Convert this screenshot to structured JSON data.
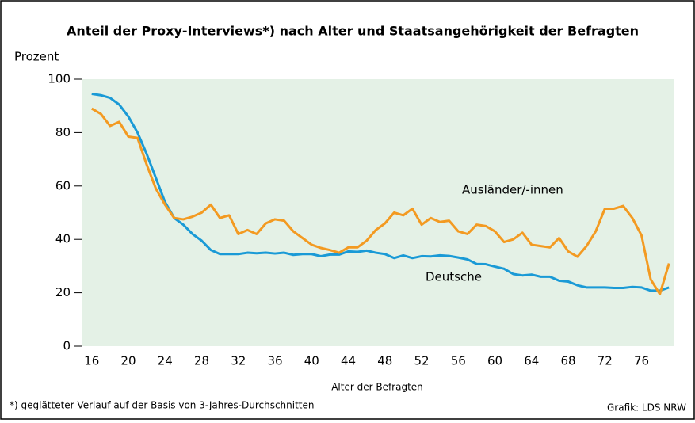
{
  "chart_data": {
    "type": "line",
    "title": "Anteil der Proxy-Interviews*) nach Alter und Staatsangehörigkeit der Befragten",
    "y_label": "Prozent",
    "x_label": "Alter der Befragten",
    "footnote": "*) geglätteter Verlauf auf der Basis von 3-Jahres-Durchschnitten",
    "source": "Grafik: LDS NRW",
    "x": [
      16,
      17,
      18,
      19,
      20,
      21,
      22,
      23,
      24,
      25,
      26,
      27,
      28,
      29,
      30,
      31,
      32,
      33,
      34,
      35,
      36,
      37,
      38,
      39,
      40,
      41,
      42,
      43,
      44,
      45,
      46,
      47,
      48,
      49,
      50,
      51,
      52,
      53,
      54,
      55,
      56,
      57,
      58,
      59,
      60,
      61,
      62,
      63,
      64,
      65,
      66,
      67,
      68,
      69,
      70,
      71,
      72,
      73,
      74,
      75,
      76,
      77,
      78,
      79
    ],
    "series": [
      {
        "name": "Deutsche",
        "color": "#1a9ad6",
        "values": [
          94.5,
          94,
          93,
          90.5,
          86,
          80,
          72,
          63,
          54,
          48,
          45.5,
          42,
          39.5,
          36,
          34.5,
          34.5,
          34.5,
          35,
          34.8,
          35,
          34.7,
          35,
          34.2,
          34.5,
          34.5,
          33.7,
          34.3,
          34.3,
          35.5,
          35.3,
          35.8,
          35,
          34.5,
          33,
          34,
          33,
          33.7,
          33.6,
          34,
          33.8,
          33.2,
          32.5,
          30.8,
          30.7,
          29.8,
          29,
          27,
          26.5,
          26.8,
          26,
          26,
          24.5,
          24.2,
          22.8,
          22,
          22,
          22,
          21.8,
          21.8,
          22.2,
          22,
          20.8,
          20.8,
          22
        ]
      },
      {
        "name": "Ausländer/-innen",
        "color": "#f39a21",
        "values": [
          89,
          87,
          82.5,
          84,
          78.5,
          78,
          68,
          59,
          53,
          48,
          47.5,
          48.5,
          50,
          53,
          48,
          49,
          42,
          43.5,
          42,
          46,
          47.5,
          47,
          43,
          40.5,
          38,
          36.8,
          36,
          35,
          37,
          37,
          39.5,
          43.5,
          46,
          50,
          49,
          51.5,
          45.5,
          48,
          46.5,
          47,
          43,
          42,
          45.5,
          45,
          43,
          39,
          40,
          42.5,
          38,
          37.5,
          37,
          40.5,
          35.5,
          33.5,
          37.5,
          43,
          51.5,
          51.5,
          52.5,
          48,
          41.5,
          25,
          19.5,
          31
        ]
      }
    ],
    "xlim": [
      14.9,
      79.5
    ],
    "xticks": [
      16,
      20,
      24,
      28,
      32,
      36,
      40,
      44,
      48,
      52,
      56,
      60,
      64,
      68,
      72,
      76
    ],
    "ylim": [
      0,
      100
    ],
    "yticks": [
      0,
      20,
      40,
      60,
      80,
      100
    ],
    "background": "#e4f1e6"
  }
}
